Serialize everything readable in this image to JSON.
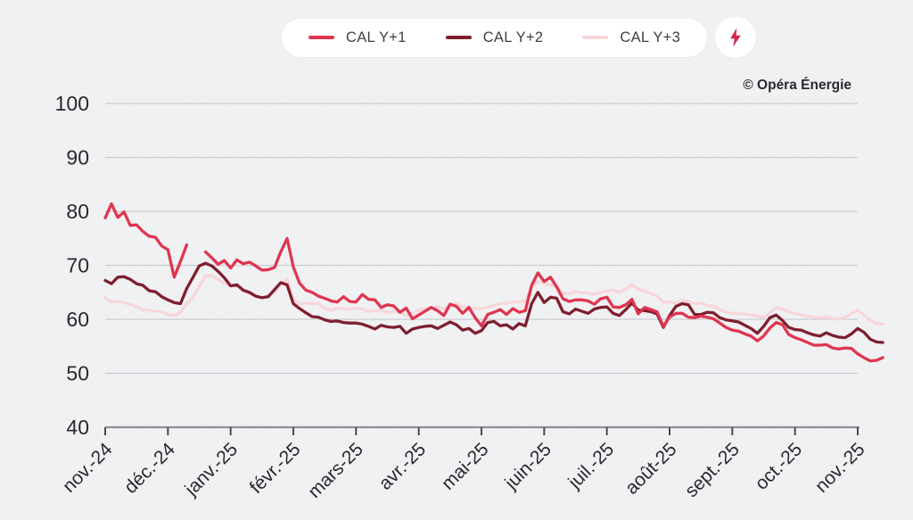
{
  "attribution": "© Opéra Énergie",
  "legend": {
    "items": [
      {
        "label": "CAL Y+1",
        "color": "#e0354f"
      },
      {
        "label": "CAL Y+2",
        "color": "#7e1f2e"
      },
      {
        "label": "CAL Y+3",
        "color": "#f8d6da"
      }
    ],
    "bolt_icon": "lightning-bolt",
    "bolt_color": "#d8244a"
  },
  "colors": {
    "background": "#eff0f2",
    "gridline": "#cbccd0",
    "axis_line": "#8e9094",
    "tick_mark": "#4b4b4f",
    "axis_text": "#28282c"
  },
  "chart_data": {
    "type": "line",
    "title": "",
    "xlabel": "",
    "ylabel": "",
    "categories": [
      "nov.-24",
      "déc.-24",
      "janv.-25",
      "févr.-25",
      "mars-25",
      "avr.-25",
      "mai-25",
      "juin-25",
      "juil.-25",
      "août-25",
      "sept.-25",
      "oct.-25",
      "nov.-25"
    ],
    "ylim": [
      40,
      100
    ],
    "yticks": [
      40,
      50,
      60,
      70,
      80,
      90,
      100
    ],
    "grid": true,
    "legend_position": "top",
    "x_note": "x sampled every 0.1 month from nov.-24 (index*0.1 months); CAL Y+1 has a data gap at year-end rollover",
    "series": [
      {
        "name": "CAL Y+1",
        "color": "#e0354f",
        "x_step": 0.1,
        "values": [
          78.8,
          81.4,
          78.9,
          79.9,
          77.4,
          77.5,
          76.3,
          75.4,
          75.2,
          73.6,
          72.9,
          67.8,
          70.7,
          73.8,
          null,
          null,
          72.5,
          71.4,
          70.2,
          70.9,
          69.5,
          71.0,
          70.3,
          70.6,
          69.9,
          69.1,
          69.2,
          69.6,
          72.5,
          75.0,
          69.7,
          66.7,
          65.4,
          65.0,
          64.3,
          63.9,
          63.4,
          63.2,
          64.2,
          63.3,
          63.2,
          64.6,
          63.7,
          63.6,
          62.2,
          62.7,
          62.5,
          61.3,
          62.1,
          60.1,
          60.8,
          61.5,
          62.2,
          61.6,
          60.7,
          62.8,
          62.4,
          61.1,
          62.2,
          60.3,
          58.8,
          60.9,
          61.3,
          61.8,
          60.9,
          62.0,
          61.3,
          61.6,
          66.3,
          68.6,
          67.0,
          67.8,
          66.0,
          63.8,
          63.3,
          63.6,
          63.6,
          63.4,
          62.8,
          63.8,
          64.1,
          62.3,
          62.2,
          62.7,
          63.7,
          61.0,
          62.2,
          61.8,
          61.4,
          58.7,
          60.4,
          61.1,
          61.1,
          60.4,
          60.3,
          60.6,
          60.4,
          60.1,
          59.3,
          58.5,
          58.0,
          57.8,
          57.3,
          56.9,
          56.0,
          56.9,
          58.4,
          59.4,
          59.0,
          57.2,
          56.6,
          56.2,
          55.7,
          55.2,
          55.2,
          55.3,
          54.7,
          54.5,
          54.7,
          54.6,
          53.6,
          52.9,
          52.3,
          52.4,
          52.9
        ]
      },
      {
        "name": "CAL Y+2",
        "color": "#7e1f2e",
        "x_step": 0.1,
        "values": [
          67.2,
          66.6,
          67.8,
          67.9,
          67.4,
          66.6,
          66.3,
          65.3,
          65.1,
          64.2,
          63.6,
          63.1,
          62.9,
          65.7,
          67.8,
          69.9,
          70.4,
          69.9,
          68.9,
          67.7,
          66.2,
          66.4,
          65.4,
          65.0,
          64.3,
          64.0,
          64.2,
          65.5,
          66.8,
          66.4,
          62.9,
          62.0,
          61.2,
          60.5,
          60.4,
          59.9,
          59.6,
          59.7,
          59.4,
          59.3,
          59.3,
          59.1,
          58.7,
          58.2,
          58.9,
          58.6,
          58.5,
          58.7,
          57.4,
          58.2,
          58.5,
          58.7,
          58.8,
          58.3,
          58.9,
          59.5,
          59.0,
          58.0,
          58.3,
          57.4,
          57.9,
          59.4,
          59.6,
          58.8,
          59.0,
          58.2,
          59.2,
          58.8,
          62.9,
          65.0,
          63.1,
          64.1,
          63.9,
          61.4,
          61.0,
          61.9,
          61.5,
          61.1,
          61.9,
          62.2,
          62.3,
          61.1,
          60.7,
          61.8,
          63.0,
          61.7,
          61.6,
          61.4,
          61.0,
          58.5,
          60.7,
          62.4,
          62.9,
          62.7,
          60.9,
          60.9,
          61.3,
          61.2,
          60.3,
          59.9,
          59.7,
          59.5,
          58.9,
          58.3,
          57.4,
          58.7,
          60.3,
          60.8,
          59.8,
          58.5,
          58.1,
          58.0,
          57.5,
          57.1,
          56.9,
          57.5,
          57.0,
          56.7,
          56.6,
          57.3,
          58.3,
          57.6,
          56.3,
          55.8,
          55.7
        ]
      },
      {
        "name": "CAL Y+3",
        "color": "#f8d6da",
        "x_step": 0.1,
        "values": [
          64.0,
          63.2,
          63.3,
          63.1,
          62.8,
          62.3,
          61.8,
          61.7,
          61.5,
          61.4,
          60.9,
          60.7,
          61.3,
          62.9,
          64.1,
          66.0,
          68.1,
          68.1,
          67.4,
          66.7,
          66.3,
          66.1,
          65.3,
          64.8,
          64.2,
          64.0,
          64.4,
          65.0,
          66.4,
          67.5,
          63.6,
          62.8,
          63.0,
          62.9,
          63.0,
          62.0,
          61.7,
          62.1,
          62.0,
          61.8,
          62.1,
          61.9,
          61.4,
          61.6,
          61.7,
          61.2,
          61.5,
          61.2,
          60.7,
          61.0,
          61.7,
          62.0,
          62.1,
          62.4,
          61.9,
          62.7,
          63.0,
          62.3,
          62.2,
          62.0,
          62.0,
          62.2,
          62.6,
          62.9,
          63.0,
          63.2,
          63.2,
          63.4,
          66.0,
          67.0,
          66.6,
          66.4,
          66.0,
          64.8,
          64.8,
          65.1,
          64.9,
          64.9,
          64.6,
          65.0,
          65.2,
          65.4,
          65.0,
          65.6,
          66.4,
          65.6,
          65.2,
          64.8,
          64.3,
          63.1,
          63.3,
          62.9,
          63.5,
          63.3,
          62.9,
          63.0,
          62.6,
          62.4,
          61.8,
          61.3,
          61.1,
          61.0,
          61.0,
          60.8,
          60.6,
          60.3,
          61.2,
          62.2,
          61.9,
          61.4,
          61.1,
          60.8,
          60.6,
          60.4,
          60.3,
          60.5,
          60.2,
          60.0,
          60.4,
          61.0,
          61.7,
          60.8,
          59.8,
          59.2,
          59.1
        ]
      }
    ]
  }
}
